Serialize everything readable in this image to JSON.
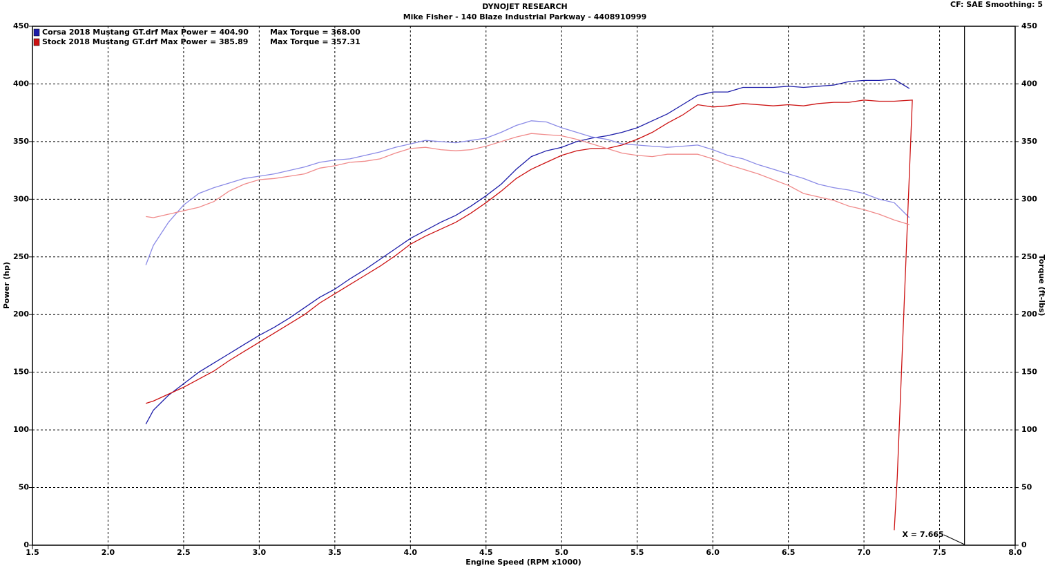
{
  "chart_data": {
    "type": "line",
    "title": "DYNOJET RESEARCH",
    "subtitle": "Mike Fisher - 140 Blaze Industrial Parkway - 4408910999",
    "corner_note": "CF: SAE  Smoothing: 5",
    "x_label": "Engine Speed (RPM x1000)",
    "y_label": "Power (hp)",
    "y2_label": "Torque (ft-lbs)",
    "grid": true,
    "xlim": [
      1.5,
      8.0
    ],
    "xticks": [
      {
        "value": 1.5,
        "label": "1.5"
      },
      {
        "value": 2,
        "label": "2.0"
      },
      {
        "value": 2.5,
        "label": "2.5"
      },
      {
        "value": 3,
        "label": "3.0"
      },
      {
        "value": 3.5,
        "label": "3.5"
      },
      {
        "value": 4,
        "label": "4.0"
      },
      {
        "value": 4.5,
        "label": "4.5"
      },
      {
        "value": 5,
        "label": "5.0"
      },
      {
        "value": 5.5,
        "label": "5.5"
      },
      {
        "value": 6,
        "label": "6.0"
      },
      {
        "value": 6.5,
        "label": "6.5"
      },
      {
        "value": 7,
        "label": "7.0"
      },
      {
        "value": 7.5,
        "label": "7.5"
      },
      {
        "value": 8,
        "label": "8.0"
      }
    ],
    "ylim": [
      0,
      450
    ],
    "yticks": [
      0,
      50,
      100,
      150,
      200,
      250,
      300,
      350,
      400,
      450
    ],
    "y2lim": [
      0,
      450
    ],
    "y2ticks": [
      0,
      50,
      100,
      150,
      200,
      250,
      300,
      350,
      400,
      450
    ],
    "legend": [
      {
        "label": "Corsa 2018 Mustang GT.drf Max Power = 404.90",
        "torque_label": "Max Torque = 368.00",
        "color": "#1c1ca8"
      },
      {
        "label": "Stock 2018 Mustang GT.drf Max Power = 385.89",
        "torque_label": "Max Torque = 357.31",
        "color": "#cc1111"
      }
    ],
    "cursor": {
      "x": 7.665,
      "label": "X = 7.665"
    },
    "series": [
      {
        "color": "#1c1ca8",
        "axis": "y",
        "x": [
          2.25,
          2.3,
          2.4,
          2.5,
          2.6,
          2.7,
          2.8,
          2.9,
          3.0,
          3.1,
          3.2,
          3.3,
          3.4,
          3.5,
          3.6,
          3.7,
          3.8,
          3.9,
          4.0,
          4.1,
          4.2,
          4.3,
          4.4,
          4.5,
          4.6,
          4.7,
          4.8,
          4.9,
          5.0,
          5.1,
          5.2,
          5.3,
          5.4,
          5.5,
          5.6,
          5.7,
          5.8,
          5.9,
          6.0,
          6.1,
          6.2,
          6.3,
          6.4,
          6.5,
          6.6,
          6.7,
          6.8,
          6.9,
          7.0,
          7.1,
          7.2,
          7.3
        ],
        "values": [
          105,
          117,
          130,
          140,
          150,
          158,
          166,
          174,
          182,
          189,
          197,
          206,
          215,
          222,
          231,
          239,
          248,
          257,
          266,
          273,
          280,
          286,
          294,
          303,
          313,
          326,
          337,
          342,
          345,
          350,
          353,
          355,
          358,
          362,
          368,
          374,
          382,
          390,
          393,
          393,
          397,
          397,
          397,
          398,
          397,
          398,
          399,
          402,
          403,
          403,
          404,
          396
        ]
      },
      {
        "color": "#8a8ae6",
        "axis": "y2",
        "x": [
          2.25,
          2.3,
          2.4,
          2.5,
          2.6,
          2.7,
          2.8,
          2.9,
          3.0,
          3.1,
          3.2,
          3.3,
          3.4,
          3.5,
          3.6,
          3.7,
          3.8,
          3.9,
          4.0,
          4.1,
          4.2,
          4.3,
          4.4,
          4.5,
          4.6,
          4.7,
          4.8,
          4.9,
          5.0,
          5.1,
          5.2,
          5.3,
          5.4,
          5.5,
          5.6,
          5.7,
          5.8,
          5.9,
          6.0,
          6.1,
          6.2,
          6.3,
          6.4,
          6.5,
          6.6,
          6.7,
          6.8,
          6.9,
          7.0,
          7.1,
          7.2,
          7.3
        ],
        "values": [
          243,
          260,
          280,
          295,
          305,
          310,
          314,
          318,
          320,
          322,
          325,
          328,
          332,
          334,
          335,
          338,
          341,
          345,
          348,
          351,
          350,
          349,
          351,
          353,
          358,
          364,
          368,
          367,
          362,
          358,
          354,
          352,
          348,
          347,
          346,
          345,
          346,
          347,
          343,
          338,
          335,
          330,
          326,
          322,
          318,
          313,
          310,
          308,
          305,
          300,
          297,
          284
        ]
      },
      {
        "color": "#cc1111",
        "axis": "y",
        "x": [
          2.25,
          2.3,
          2.4,
          2.5,
          2.6,
          2.7,
          2.8,
          2.9,
          3.0,
          3.1,
          3.2,
          3.3,
          3.4,
          3.5,
          3.6,
          3.7,
          3.8,
          3.9,
          4.0,
          4.1,
          4.2,
          4.3,
          4.4,
          4.5,
          4.6,
          4.7,
          4.8,
          4.9,
          5.0,
          5.1,
          5.2,
          5.3,
          5.4,
          5.5,
          5.6,
          5.7,
          5.8,
          5.9,
          6.0,
          6.1,
          6.2,
          6.3,
          6.4,
          6.5,
          6.6,
          6.7,
          6.8,
          6.9,
          7.0,
          7.1,
          7.2,
          7.32,
          7.22,
          7.2
        ],
        "values": [
          123,
          125,
          131,
          137,
          144,
          151,
          160,
          168,
          176,
          184,
          192,
          200,
          210,
          218,
          226,
          234,
          242,
          251,
          261,
          268,
          274,
          280,
          288,
          297,
          307,
          318,
          326,
          332,
          338,
          342,
          344,
          344,
          347,
          352,
          358,
          366,
          373,
          382,
          380,
          381,
          383,
          382,
          381,
          382,
          381,
          383,
          384,
          384,
          386,
          385,
          385,
          386,
          58,
          13
        ]
      },
      {
        "color": "#f08a8a",
        "axis": "y2",
        "x": [
          2.25,
          2.3,
          2.4,
          2.5,
          2.6,
          2.7,
          2.8,
          2.9,
          3.0,
          3.1,
          3.2,
          3.3,
          3.4,
          3.5,
          3.6,
          3.7,
          3.8,
          3.9,
          4.0,
          4.1,
          4.2,
          4.3,
          4.4,
          4.5,
          4.6,
          4.7,
          4.8,
          4.9,
          5.0,
          5.1,
          5.2,
          5.3,
          5.4,
          5.5,
          5.6,
          5.7,
          5.8,
          5.9,
          6.0,
          6.1,
          6.2,
          6.3,
          6.4,
          6.5,
          6.6,
          6.7,
          6.8,
          6.9,
          7.0,
          7.1,
          7.2,
          7.3
        ],
        "values": [
          285,
          284,
          287,
          290,
          293,
          298,
          307,
          313,
          317,
          318,
          320,
          322,
          327,
          329,
          332,
          333,
          335,
          340,
          344,
          345,
          343,
          342,
          343,
          346,
          350,
          354,
          357,
          356,
          355,
          352,
          348,
          344,
          340,
          338,
          337,
          339,
          339,
          339,
          335,
          330,
          326,
          322,
          317,
          312,
          305,
          302,
          299,
          294,
          291,
          287,
          282,
          278
        ]
      }
    ]
  }
}
